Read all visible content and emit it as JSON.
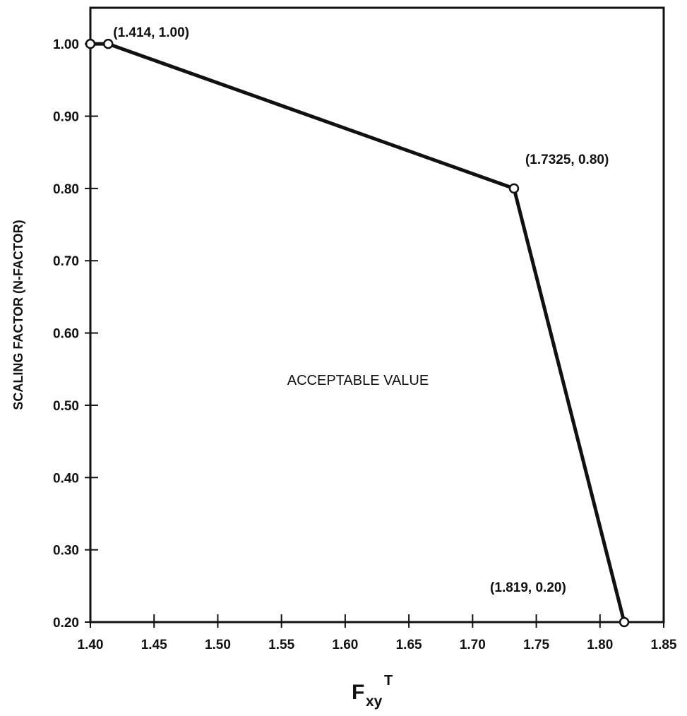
{
  "chart_data": {
    "type": "line",
    "title": "",
    "xlabel": {
      "main": "F",
      "sub": "xy",
      "sup": "T"
    },
    "ylabel": "SCALING FACTOR (N-FACTOR)",
    "xlim": [
      1.4,
      1.85
    ],
    "ylim": [
      0.2,
      1.05
    ],
    "x_ticks": [
      1.4,
      1.45,
      1.5,
      1.55,
      1.6,
      1.65,
      1.7,
      1.75,
      1.8,
      1.85
    ],
    "x_tick_labels": [
      "1.40",
      "1.45",
      "1.50",
      "1.55",
      "1.60",
      "1.65",
      "1.70",
      "1.75",
      "1.80",
      "1.85"
    ],
    "y_ticks": [
      0.2,
      0.3,
      0.4,
      0.5,
      0.6,
      0.7,
      0.8,
      0.9,
      1.0
    ],
    "y_tick_labels": [
      "0.20",
      "0.30",
      "0.40",
      "0.50",
      "0.60",
      "0.70",
      "0.80",
      "0.90",
      "1.00"
    ],
    "grid": false,
    "legend": "none",
    "series": [
      {
        "x": [
          1.4,
          1.414,
          1.7325,
          1.819
        ],
        "y": [
          1.0,
          1.0,
          0.8,
          0.2
        ]
      }
    ],
    "annotations": [
      {
        "text": "(1.414, 1.00)",
        "x": 1.414,
        "y": 1.0
      },
      {
        "text": "(1.7325, 0.80)",
        "x": 1.7325,
        "y": 0.8
      },
      {
        "text": "(1.819, 0.20)",
        "x": 1.819,
        "y": 0.2
      }
    ],
    "region_label": "ACCEPTABLE VALUE",
    "colors": {
      "line": "#111111",
      "marker_fill": "#ffffff",
      "axis": "#111111"
    }
  }
}
